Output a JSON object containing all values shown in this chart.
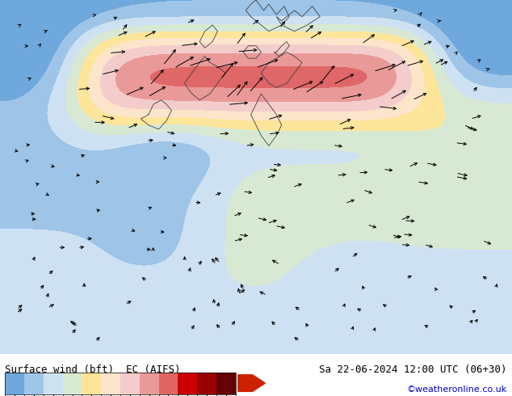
{
  "title_left": "Surface wind (bft)  EC (AIFS)",
  "title_right": "Sa 22-06-2024 12:00 UTC (06+30)",
  "credit": "©weatheronline.co.uk",
  "colorbar_levels": [
    1,
    2,
    3,
    4,
    5,
    6,
    7,
    8,
    9,
    10,
    11,
    12
  ],
  "colorbar_colors": [
    "#6fa8dc",
    "#9fc5e8",
    "#cfe2f3",
    "#d9ead3",
    "#ffe599",
    "#fce5cd",
    "#f4cccc",
    "#ea9999",
    "#e06666",
    "#cc0000",
    "#990000",
    "#660000"
  ],
  "bg_color": "#87ceeb",
  "map_colors": {
    "light_blue1": "#add8e6",
    "light_blue2": "#b0d4e8",
    "light_cyan": "#c8e8f0",
    "pale_cyan": "#d0eef5",
    "light_green": "#c8dca0",
    "pale_green": "#d8e8b0",
    "yellow_green": "#e8f0c0",
    "light_yellow": "#f5f0c0",
    "pale_yellow": "#f8ebb0",
    "orange_light": "#f8c878",
    "light_red": "#e87070",
    "medium_red": "#d04040",
    "dark_red": "#b82020"
  },
  "figsize": [
    6.34,
    4.9
  ],
  "dpi": 100,
  "arrow_color": "#000000",
  "border_color": "#404040",
  "text_color_left": "#000000",
  "text_color_right": "#000000",
  "text_color_credit": "#0000cc",
  "font_size_title": 9,
  "font_size_credit": 8,
  "colorbar_label_size": 8,
  "arrow_triangle_color": "#cc2200"
}
